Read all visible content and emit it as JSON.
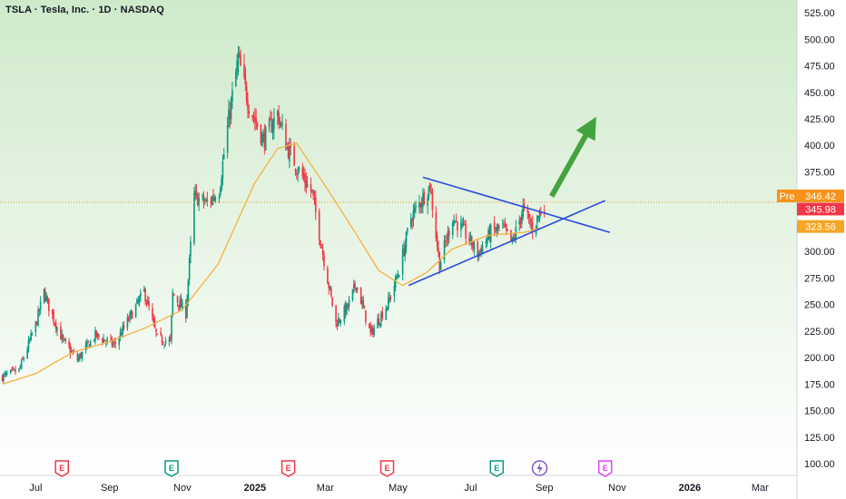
{
  "header": {
    "title": "TSLA · Tesla, Inc. · 1D · NASDAQ"
  },
  "chart_data": {
    "type": "candlestick",
    "symbol": "TSLA",
    "interval": "1D",
    "exchange": "NASDAQ",
    "y_ticks": [
      100,
      125,
      150,
      175,
      200,
      225,
      250,
      275,
      300,
      325,
      350,
      375,
      400,
      425,
      450,
      475,
      500,
      525
    ],
    "ylim": [
      89,
      537
    ],
    "x_ticks": [
      {
        "label": "Jul",
        "date": "2024-07-01",
        "bold": false
      },
      {
        "label": "Sep",
        "date": "2024-09-01",
        "bold": false
      },
      {
        "label": "Nov",
        "date": "2024-11-01",
        "bold": false
      },
      {
        "label": "2025",
        "date": "2025-01-01",
        "bold": true
      },
      {
        "label": "Mar",
        "date": "2025-03-01",
        "bold": false
      },
      {
        "label": "May",
        "date": "2025-05-01",
        "bold": false
      },
      {
        "label": "Jul",
        "date": "2025-07-01",
        "bold": false
      },
      {
        "label": "Sep",
        "date": "2025-09-01",
        "bold": false
      },
      {
        "label": "Nov",
        "date": "2025-11-01",
        "bold": false
      },
      {
        "label": "2026",
        "date": "2026-01-01",
        "bold": true
      },
      {
        "label": "Mar",
        "date": "2026-03-01",
        "bold": false
      }
    ],
    "xlim": [
      "2024-06-01",
      "2026-04-01"
    ],
    "price_points": [
      [
        "2024-06-03",
        182
      ],
      [
        "2024-06-17",
        188
      ],
      [
        "2024-07-01",
        231
      ],
      [
        "2024-07-08",
        262
      ],
      [
        "2024-07-12",
        248
      ],
      [
        "2024-07-24",
        215
      ],
      [
        "2024-08-05",
        198
      ],
      [
        "2024-08-20",
        221
      ],
      [
        "2024-09-05",
        212
      ],
      [
        "2024-09-20",
        242
      ],
      [
        "2024-09-30",
        262
      ],
      [
        "2024-10-11",
        218
      ],
      [
        "2024-10-22",
        215
      ],
      [
        "2024-10-24",
        260
      ],
      [
        "2024-11-04",
        242
      ],
      [
        "2024-11-11",
        352
      ],
      [
        "2024-11-22",
        345
      ],
      [
        "2024-12-02",
        358
      ],
      [
        "2024-12-10",
        425
      ],
      [
        "2024-12-18",
        482
      ],
      [
        "2024-12-27",
        438
      ],
      [
        "2025-01-08",
        405
      ],
      [
        "2025-01-20",
        430
      ],
      [
        "2025-01-28",
        398
      ],
      [
        "2025-02-05",
        380
      ],
      [
        "2025-02-18",
        355
      ],
      [
        "2025-02-28",
        292
      ],
      [
        "2025-03-10",
        232
      ],
      [
        "2025-03-20",
        248
      ],
      [
        "2025-03-27",
        270
      ],
      [
        "2025-04-08",
        222
      ],
      [
        "2025-04-23",
        252
      ],
      [
        "2025-05-02",
        282
      ],
      [
        "2025-05-12",
        332
      ],
      [
        "2025-05-28",
        362
      ],
      [
        "2025-06-05",
        288
      ],
      [
        "2025-06-16",
        332
      ],
      [
        "2025-06-26",
        318
      ],
      [
        "2025-07-07",
        298
      ],
      [
        "2025-07-18",
        318
      ],
      [
        "2025-07-28",
        322
      ],
      [
        "2025-08-05",
        308
      ],
      [
        "2025-08-14",
        340
      ],
      [
        "2025-08-22",
        322
      ],
      [
        "2025-09-01",
        345
      ]
    ],
    "moving_average": [
      [
        "2024-06-03",
        175
      ],
      [
        "2024-07-01",
        185
      ],
      [
        "2024-08-01",
        205
      ],
      [
        "2024-09-01",
        215
      ],
      [
        "2024-10-01",
        228
      ],
      [
        "2024-11-01",
        245
      ],
      [
        "2024-12-01",
        288
      ],
      [
        "2025-01-01",
        365
      ],
      [
        "2025-01-20",
        397
      ],
      [
        "2025-02-05",
        402
      ],
      [
        "2025-03-01",
        362
      ],
      [
        "2025-03-25",
        320
      ],
      [
        "2025-04-15",
        282
      ],
      [
        "2025-05-05",
        268
      ],
      [
        "2025-05-25",
        280
      ],
      [
        "2025-06-15",
        302
      ],
      [
        "2025-07-15",
        315
      ],
      [
        "2025-08-15",
        318
      ],
      [
        "2025-09-01",
        323
      ]
    ],
    "price_lines": [
      {
        "label": "Pre",
        "value": 346.42,
        "text": "346.42",
        "color": "#f7931a"
      },
      {
        "label": "",
        "value": 345.98,
        "text": "345.98",
        "color": "#f23645"
      },
      {
        "label": "",
        "value": 323.56,
        "text": "323.56",
        "color": "#f5a623"
      }
    ],
    "trendlines": [
      {
        "name": "upper",
        "from": [
          "2025-05-22",
          370
        ],
        "to": [
          "2025-10-26",
          318
        ],
        "color": "#2a4bde"
      },
      {
        "name": "lower",
        "from": [
          "2025-05-10",
          268
        ],
        "to": [
          "2025-10-22",
          348
        ],
        "color": "#2a4bde"
      }
    ],
    "arrow": {
      "from": [
        "2025-09-07",
        352
      ],
      "to": [
        "2025-10-10",
        418
      ],
      "color": "#43a33f"
    },
    "events": [
      {
        "date": "2024-07-23",
        "letter": "E",
        "color": "#f23645"
      },
      {
        "date": "2024-10-23",
        "letter": "E",
        "color": "#089981"
      },
      {
        "date": "2025-01-29",
        "letter": "E",
        "color": "#f23645"
      },
      {
        "date": "2025-04-22",
        "letter": "E",
        "color": "#f23645"
      },
      {
        "date": "2025-07-23",
        "letter": "E",
        "color": "#089981"
      },
      {
        "date": "2025-08-28",
        "letter": "",
        "color": "#7e57c2",
        "icon": "lightning-icon"
      },
      {
        "date": "2025-10-22",
        "letter": "E",
        "color": "#e040fb"
      }
    ],
    "colors": {
      "up": "#089981",
      "down": "#f23645",
      "ma": "#f5b13d",
      "grid_bg_top": "#cfeacb",
      "grid_bg_bottom": "#ffffff",
      "axis_bg": "#ffffff"
    }
  }
}
